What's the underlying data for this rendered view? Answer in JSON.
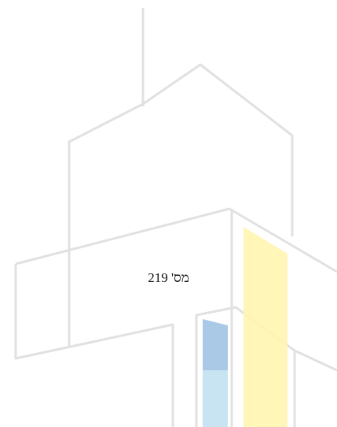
{
  "document": {
    "number": "מס' 219"
  }
}
